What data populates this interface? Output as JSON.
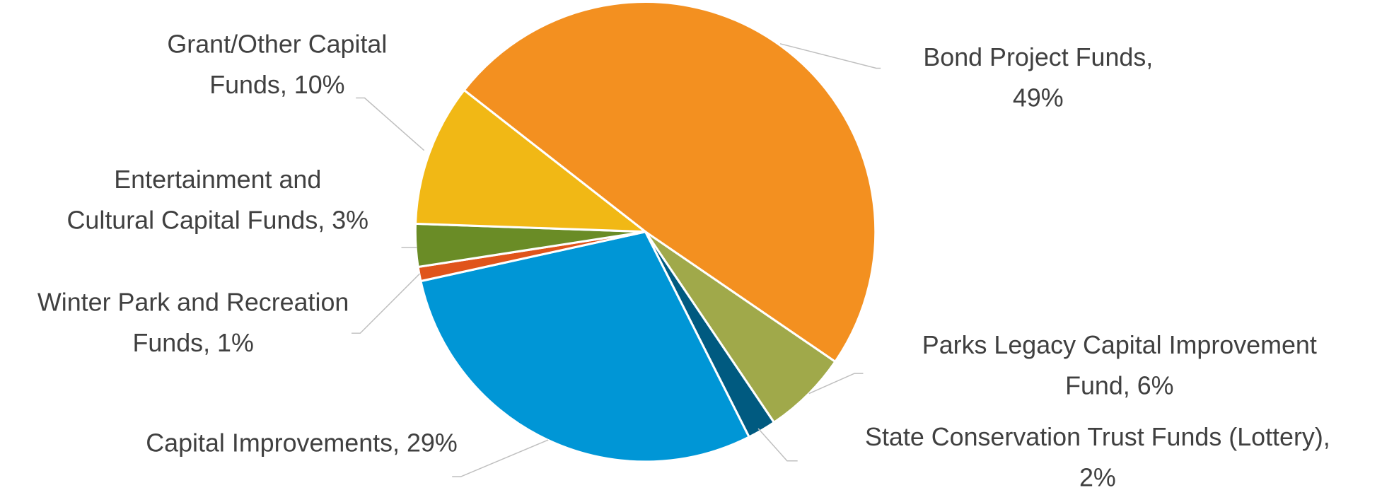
{
  "chart_data": {
    "type": "pie",
    "values": [
      49,
      6,
      2,
      29,
      1,
      3,
      10
    ],
    "value_labels": [
      "Bond Project Funds, 49%",
      "Parks Legacy Capital Improvement Fund, 6%",
      "State Conservation Trust Funds (Lottery), 2%",
      "Capital Improvements, 29%",
      "Winter Park and Recreation Funds, 1%",
      "Entertainment and Cultural Capital Funds, 3%",
      "Grant/Other Capital Funds, 10%"
    ],
    "colors": [
      "#f39020",
      "#a0a94a",
      "#005a80",
      "#0096d6",
      "#e0541b",
      "#6a8c26",
      "#f1b815"
    ]
  }
}
